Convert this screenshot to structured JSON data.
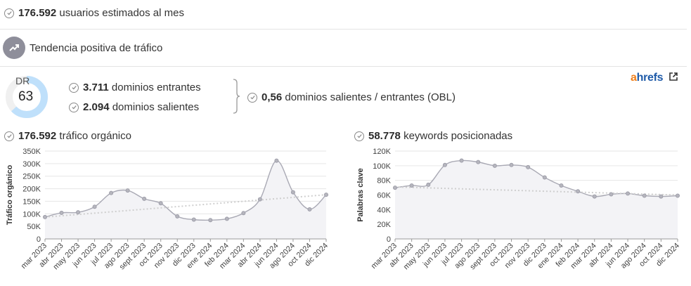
{
  "stats": {
    "users_value": "176.592",
    "users_label": "usuarios estimados al mes",
    "trend_label": "Tendencia positiva de tráfico",
    "dr_label": "DR",
    "dr_value": "63",
    "dr_fill": 0.63,
    "inbound_value": "3.711",
    "inbound_label": "dominios entrantes",
    "outbound_value": "2.094",
    "outbound_label": "dominios salientes",
    "obl_value": "0,56",
    "obl_label": "dominios salientes / entrantes (OBL)",
    "brand_a": "a",
    "brand_rest": "hrefs",
    "traffic_value": "176.592",
    "traffic_label": "tráfico orgánico",
    "keywords_value": "58.778",
    "keywords_label": "keywords posicionadas"
  },
  "colors": {
    "dr_ring": "#bfe0fb",
    "dr_track": "#f0f0f0",
    "line": "#a9a9b4",
    "area": "#f3f3f6",
    "trendline": "#cfcfcf",
    "brand_orange": "#f07f1a",
    "brand_blue": "#1e5aa8"
  },
  "icons": [
    "check-circle-icon",
    "trend-up-icon",
    "external-link-icon",
    "brace-icon"
  ],
  "chart_data": [
    {
      "type": "area",
      "ylabel": "Tráfico orgánico",
      "categories": [
        "mar 2023",
        "abr 2023",
        "may 2023",
        "jun 2023",
        "jul 2023",
        "ago 2023",
        "sept 2023",
        "oct 2023",
        "nov 2023",
        "dic 2023",
        "ene 2024",
        "feb 2024",
        "mar 2024",
        "abr 2024",
        "jun 2024",
        "ago 2024",
        "oct 2024",
        "dic 2024"
      ],
      "values": [
        87000,
        104000,
        106000,
        128000,
        183000,
        193000,
        160000,
        142000,
        90000,
        77000,
        75000,
        80000,
        103000,
        158000,
        312000,
        186000,
        118000,
        176000
      ],
      "trend": [
        87000,
        176000
      ],
      "ylim": [
        0,
        350000
      ],
      "yticks": [
        "0",
        "50K",
        "100K",
        "150K",
        "200K",
        "250K",
        "300K",
        "350K"
      ],
      "ytick_values": [
        0,
        50000,
        100000,
        150000,
        200000,
        250000,
        300000,
        350000
      ]
    },
    {
      "type": "area",
      "ylabel": "Palabras clave",
      "categories": [
        "mar 2023",
        "abr 2023",
        "may 2023",
        "jun 2023",
        "jul 2023",
        "ago 2023",
        "sept 2023",
        "oct 2023",
        "nov 2023",
        "dic 2023",
        "ene 2024",
        "feb 2024",
        "mar 2024",
        "abr 2024",
        "jun 2024",
        "ago 2024",
        "oct 2024",
        "dic 2024"
      ],
      "values": [
        70000,
        73000,
        74000,
        101000,
        107000,
        105000,
        100000,
        101000,
        98000,
        84000,
        73000,
        65000,
        58000,
        61000,
        62000,
        59000,
        58000,
        59000
      ],
      "trend": [
        71000,
        60000
      ],
      "ylim": [
        0,
        120000
      ],
      "yticks": [
        "0",
        "20K",
        "40K",
        "60K",
        "80K",
        "100K",
        "120K"
      ],
      "ytick_values": [
        0,
        20000,
        40000,
        60000,
        80000,
        100000,
        120000
      ]
    }
  ]
}
